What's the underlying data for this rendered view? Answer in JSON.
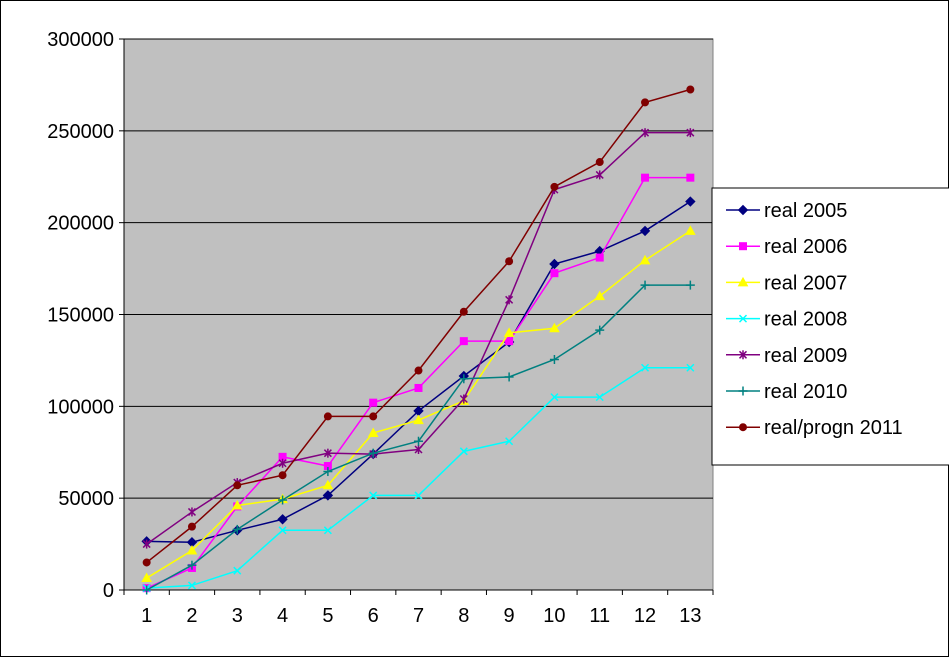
{
  "chart_data": {
    "type": "line",
    "title": "",
    "xlabel": "",
    "ylabel": "",
    "categories": [
      "1",
      "2",
      "3",
      "4",
      "5",
      "6",
      "7",
      "8",
      "9",
      "10",
      "11",
      "12",
      "13"
    ],
    "ylim": [
      0,
      300000
    ],
    "yticks": [
      0,
      50000,
      100000,
      150000,
      200000,
      250000,
      300000
    ],
    "ytick_labels": [
      "0",
      "50000",
      "100000",
      "150000",
      "200000",
      "250000",
      "300000"
    ],
    "grid": "horizontal",
    "plot_background": "#c0c0c0",
    "legend_position": "right",
    "series": [
      {
        "name": "real 2005",
        "color": "#000080",
        "marker": "diamond",
        "values": [
          26500,
          26000,
          32500,
          38500,
          51500,
          74000,
          97500,
          116500,
          135000,
          177500,
          184500,
          195500,
          211500
        ]
      },
      {
        "name": "real 2006",
        "color": "#ff00ff",
        "marker": "square",
        "values": [
          1000,
          12000,
          45500,
          72500,
          67500,
          102000,
          110000,
          135500,
          135500,
          172500,
          181000,
          224500,
          224500
        ]
      },
      {
        "name": "real 2007",
        "color": "#ffff00",
        "marker": "triangle",
        "values": [
          6500,
          21500,
          46000,
          49500,
          57000,
          85500,
          92500,
          103000,
          140000,
          142500,
          160000,
          179500,
          195500
        ]
      },
      {
        "name": "real 2008",
        "color": "#00ffff",
        "marker": "x",
        "values": [
          1000,
          2500,
          10500,
          32500,
          32500,
          51500,
          51500,
          75500,
          81000,
          105000,
          105000,
          121000,
          121000
        ]
      },
      {
        "name": "real 2009",
        "color": "#800080",
        "marker": "star",
        "values": [
          25000,
          42500,
          58500,
          69000,
          74500,
          74000,
          76500,
          104000,
          158000,
          218000,
          226000,
          249000,
          249000
        ]
      },
      {
        "name": "real 2010",
        "color": "#008080",
        "marker": "plus",
        "values": [
          0,
          13500,
          33000,
          49000,
          64500,
          74500,
          81000,
          115000,
          116000,
          125500,
          141500,
          166000,
          166000
        ]
      },
      {
        "name": "real/progn 2011",
        "color": "#800000",
        "marker": "circle",
        "values": [
          15000,
          34500,
          57000,
          62500,
          94500,
          94500,
          119500,
          151500,
          179000,
          219500,
          233000,
          265500,
          272500
        ]
      }
    ]
  }
}
